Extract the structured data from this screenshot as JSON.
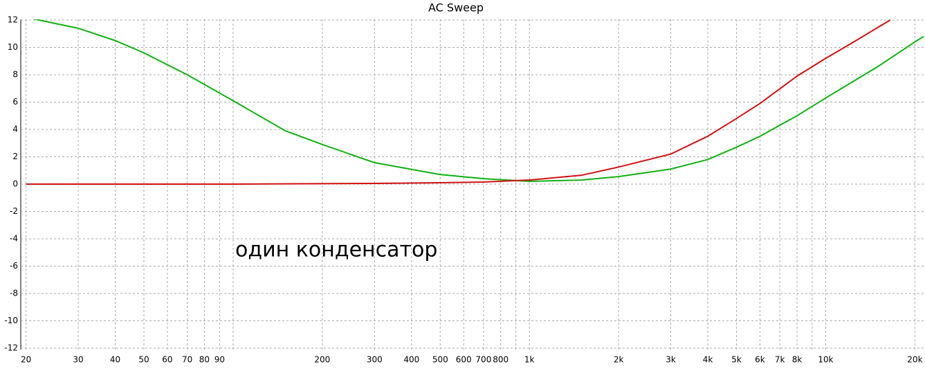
{
  "chart_data": {
    "type": "line",
    "title": "AC Sweep",
    "annotation": "один конденсатор",
    "x_scale": "log",
    "grid": true,
    "xlim": [
      19.2,
      21400
    ],
    "ylim": [
      -12.1,
      12.05
    ],
    "xticks": [
      20,
      30,
      40,
      50,
      60,
      70,
      80,
      90,
      {
        "value": 100,
        "label": null
      },
      200,
      300,
      400,
      500,
      600,
      700,
      800,
      {
        "value": 900,
        "label": null
      },
      {
        "value": 1000,
        "label": "1k"
      },
      {
        "value": 2000,
        "label": "2k"
      },
      {
        "value": 3000,
        "label": "3k"
      },
      {
        "value": 4000,
        "label": "4k"
      },
      {
        "value": 5000,
        "label": "5k"
      },
      {
        "value": 6000,
        "label": "6k"
      },
      {
        "value": 7000,
        "label": "7k"
      },
      {
        "value": 8000,
        "label": "8k"
      },
      {
        "value": 9000,
        "label": null
      },
      {
        "value": 10000,
        "label": "10k"
      },
      {
        "value": 20000,
        "label": "20k"
      }
    ],
    "yticks": [
      12,
      10,
      8,
      6,
      4,
      2,
      0,
      -2,
      -4,
      -6,
      -8,
      -10,
      -12
    ],
    "series": [
      {
        "color": "#d01010",
        "x": [
          20,
          100,
          300,
          500,
          700,
          1000,
          1500,
          2000,
          3000,
          4000,
          5000,
          6000,
          8000,
          10000,
          12000,
          16500
        ],
        "values": [
          0,
          0,
          0.05,
          0.1,
          0.15,
          0.3,
          0.65,
          1.25,
          2.2,
          3.5,
          4.8,
          5.9,
          7.9,
          9.2,
          10.2,
          12.0
        ]
      },
      {
        "color": "#10b010",
        "x": [
          20,
          30,
          40,
          50,
          70,
          100,
          150,
          200,
          300,
          500,
          700,
          1000,
          1500,
          2000,
          3000,
          4000,
          5000,
          6000,
          8000,
          10000,
          15000,
          20000,
          21400
        ],
        "values": [
          12.2,
          11.4,
          10.5,
          9.6,
          8.0,
          6.1,
          3.9,
          2.9,
          1.57,
          0.7,
          0.4,
          0.2,
          0.3,
          0.55,
          1.1,
          1.8,
          2.7,
          3.5,
          5.0,
          6.3,
          8.6,
          10.4,
          10.8
        ]
      }
    ]
  }
}
